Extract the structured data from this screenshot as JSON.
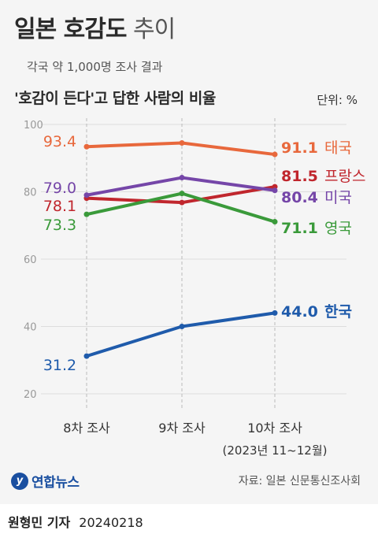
{
  "header": {
    "title_bold": "일본 호감도",
    "title_light": "추이",
    "subtitle": "각국 약 1,000명 조사 결과",
    "heading": "'호감이 든다'고 답한 사람의 비율",
    "unit": "단위: %"
  },
  "chart_data": {
    "type": "line",
    "categories": [
      "8차 조사",
      "9차 조사",
      "10차 조사"
    ],
    "category_note": "(2023년 11~12월)",
    "ylim": [
      20,
      100
    ],
    "yticks": [
      20,
      40,
      60,
      80,
      100
    ],
    "grid": true,
    "series": [
      {
        "name": "태국",
        "values": [
          93.4,
          94.5,
          91.1
        ],
        "color": "#e8683c"
      },
      {
        "name": "프랑스",
        "values": [
          78.1,
          76.8,
          81.5
        ],
        "color": "#c0262d"
      },
      {
        "name": "미국",
        "values": [
          79.0,
          84.2,
          80.4
        ],
        "color": "#7546a8"
      },
      {
        "name": "영국",
        "values": [
          73.3,
          79.5,
          71.1
        ],
        "color": "#3a9a3a"
      },
      {
        "name": "한국",
        "values": [
          31.2,
          40.0,
          44.0
        ],
        "color": "#1f5bab"
      }
    ],
    "start_labels": [
      "93.4",
      "78.1",
      "79.0",
      "73.3",
      "31.2"
    ],
    "end_labels": [
      "91.1",
      "81.5",
      "80.4",
      "71.1",
      "44.0"
    ]
  },
  "footer": {
    "logo_mark": "y",
    "logo_text": "연합뉴스",
    "source": "자료: 일본 신문통신조사회",
    "reporter": "원형민 기자",
    "date": "20240218"
  }
}
